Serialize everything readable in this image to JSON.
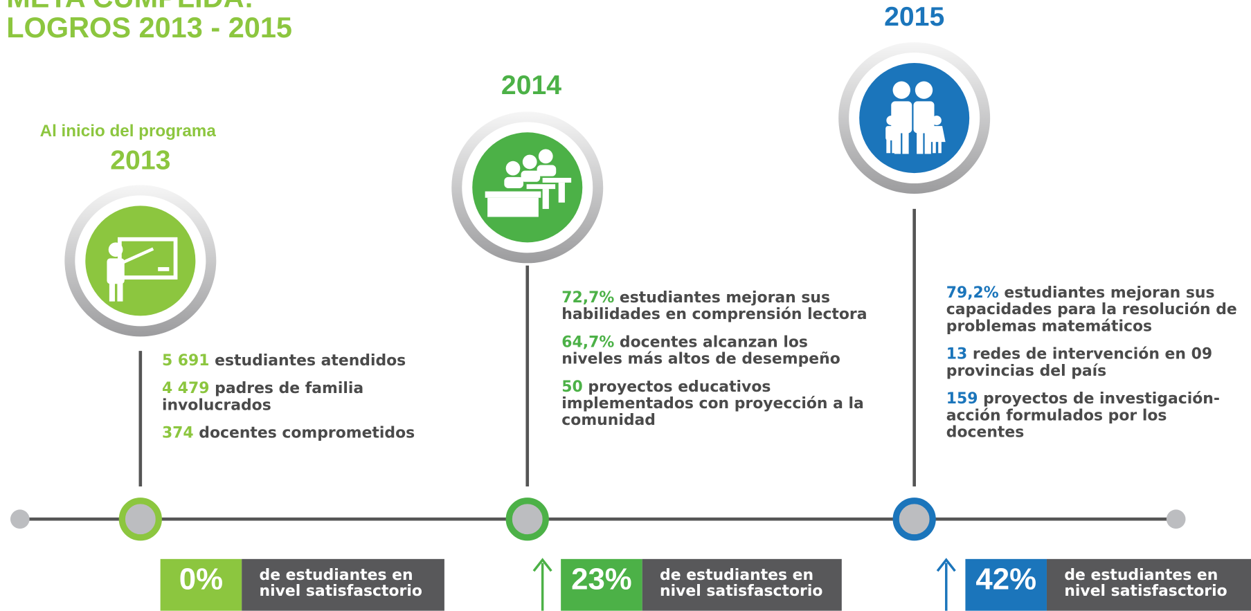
{
  "header": {
    "title": [
      "META CUMPLIDA:",
      "LOGROS 2013 - 2015"
    ]
  },
  "milestones": [
    {
      "subtitle": "Al inicio del programa",
      "year": "2013",
      "color": "#8cc63f",
      "items": [
        {
          "number": "5 691",
          "text": "estudiantes atendidos"
        },
        {
          "number": "4 479",
          "text": "padres de familia involucrados"
        },
        {
          "number": "374",
          "text": "docentes comprometidos"
        }
      ],
      "result": {
        "percent": "0%",
        "text": "de estudiantes en nivel satisfasctorio"
      }
    },
    {
      "year": "2014",
      "color": "#4cb147",
      "items": [
        {
          "number": "72,7%",
          "text": "estudiantes mejoran sus habilidades en comprensión lectora"
        },
        {
          "number": "64,7%",
          "text": "docentes alcanzan los niveles más altos de desempeño"
        },
        {
          "number": "50",
          "text": "proyectos educativos implementados con proyección a la comunidad"
        }
      ],
      "result": {
        "percent": "23%",
        "text": "de estudiantes en nivel satisfasctorio"
      }
    },
    {
      "year": "2015",
      "color": "#1b75bb",
      "items": [
        {
          "number": "79,2%",
          "text": "estudiantes mejoran sus capacidades para la resolución de problemas matemáticos"
        },
        {
          "number": "13",
          "text": "redes de intervención en 09 provincias del país"
        },
        {
          "number": "159",
          "text": "proyectos de investigación-acción formulados por los docentes"
        }
      ],
      "result": {
        "percent": "42%",
        "text": "de estudiantes en nivel satisfasctorio"
      }
    }
  ]
}
